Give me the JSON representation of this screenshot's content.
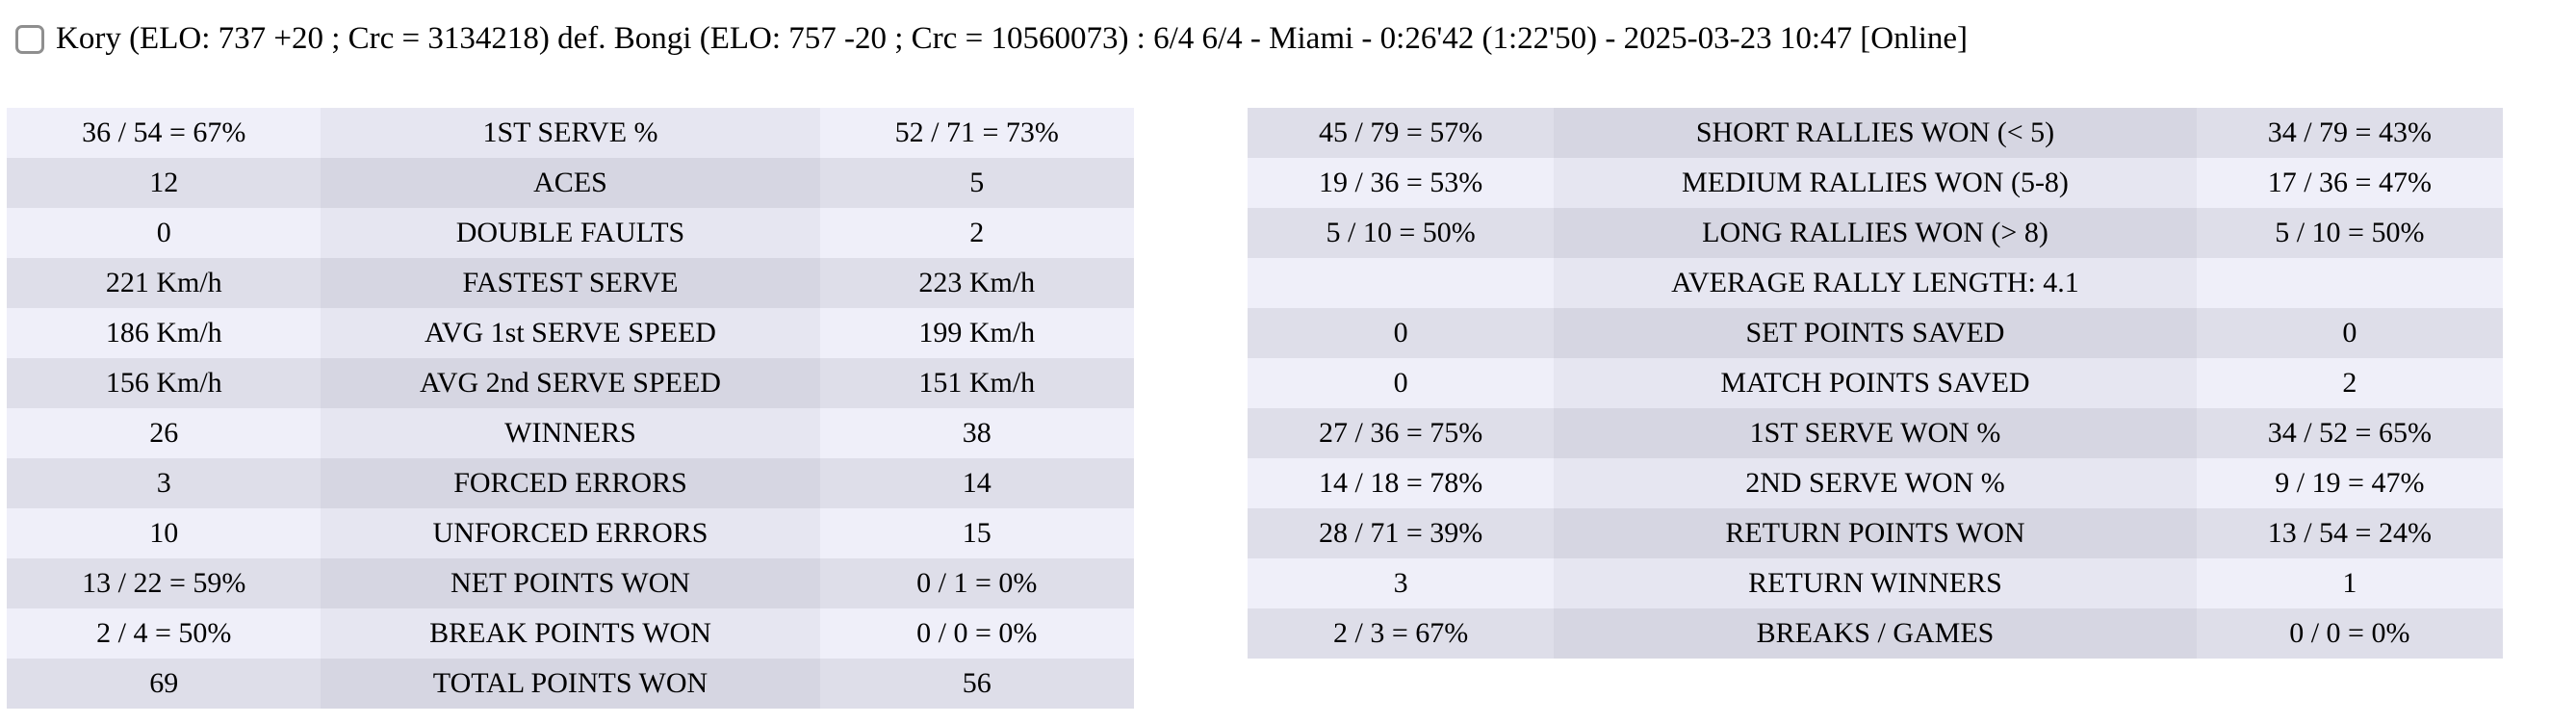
{
  "header": {
    "match_summary": "Kory (ELO: 737 +20 ; Crc = 3134218) def. Bongi (ELO: 757 -20 ; Crc = 10560073) : 6/4 6/4 - Miami - 0:26'42 (1:22'50) - 2025-03-23 10:47 [Online]",
    "checkbox_checked": false
  },
  "colors": {
    "row_light_outer": "#efeff9",
    "row_light_mid": "#e6e6f1",
    "row_dark_outer": "#dedee9",
    "row_dark_mid": "#d6d6e2",
    "checkbox_border": "#8f8f8f",
    "text": "#000000",
    "background": "#ffffff"
  },
  "left_table": {
    "rows": [
      {
        "p1": "36 / 54 = 67%",
        "label": "1ST SERVE %",
        "p2": "52 / 71 = 73%"
      },
      {
        "p1": "12",
        "label": "ACES",
        "p2": "5"
      },
      {
        "p1": "0",
        "label": "DOUBLE FAULTS",
        "p2": "2"
      },
      {
        "p1": "221 Km/h",
        "label": "FASTEST SERVE",
        "p2": "223 Km/h"
      },
      {
        "p1": "186 Km/h",
        "label": "AVG 1st SERVE SPEED",
        "p2": "199 Km/h"
      },
      {
        "p1": "156 Km/h",
        "label": "AVG 2nd SERVE SPEED",
        "p2": "151 Km/h"
      },
      {
        "p1": "26",
        "label": "WINNERS",
        "p2": "38"
      },
      {
        "p1": "3",
        "label": "FORCED ERRORS",
        "p2": "14"
      },
      {
        "p1": "10",
        "label": "UNFORCED ERRORS",
        "p2": "15"
      },
      {
        "p1": "13 / 22 = 59%",
        "label": "NET POINTS WON",
        "p2": "0 / 1 = 0%"
      },
      {
        "p1": "2 / 4 = 50%",
        "label": "BREAK POINTS WON",
        "p2": "0 / 0 = 0%"
      },
      {
        "p1": "69",
        "label": "TOTAL POINTS WON",
        "p2": "56"
      }
    ]
  },
  "right_table": {
    "rows": [
      {
        "p1": "45 / 79 = 57%",
        "label": "SHORT RALLIES WON (< 5)",
        "p2": "34 / 79 = 43%"
      },
      {
        "p1": "19 / 36 = 53%",
        "label": "MEDIUM RALLIES WON (5-8)",
        "p2": "17 / 36 = 47%"
      },
      {
        "p1": "5 / 10 = 50%",
        "label": "LONG RALLIES WON (> 8)",
        "p2": "5 / 10 = 50%"
      },
      {
        "p1": "",
        "label": "AVERAGE RALLY LENGTH: 4.1",
        "p2": ""
      },
      {
        "p1": "0",
        "label": "SET POINTS SAVED",
        "p2": "0"
      },
      {
        "p1": "0",
        "label": "MATCH POINTS SAVED",
        "p2": "2"
      },
      {
        "p1": "27 / 36 = 75%",
        "label": "1ST SERVE WON %",
        "p2": "34 / 52 = 65%"
      },
      {
        "p1": "14 / 18 = 78%",
        "label": "2ND SERVE WON %",
        "p2": "9 / 19 = 47%"
      },
      {
        "p1": "28 / 71 = 39%",
        "label": "RETURN POINTS WON",
        "p2": "13 / 54 = 24%"
      },
      {
        "p1": "3",
        "label": "RETURN WINNERS",
        "p2": "1"
      },
      {
        "p1": "2 / 3 = 67%",
        "label": "BREAKS / GAMES",
        "p2": "0 / 0 = 0%"
      }
    ]
  }
}
